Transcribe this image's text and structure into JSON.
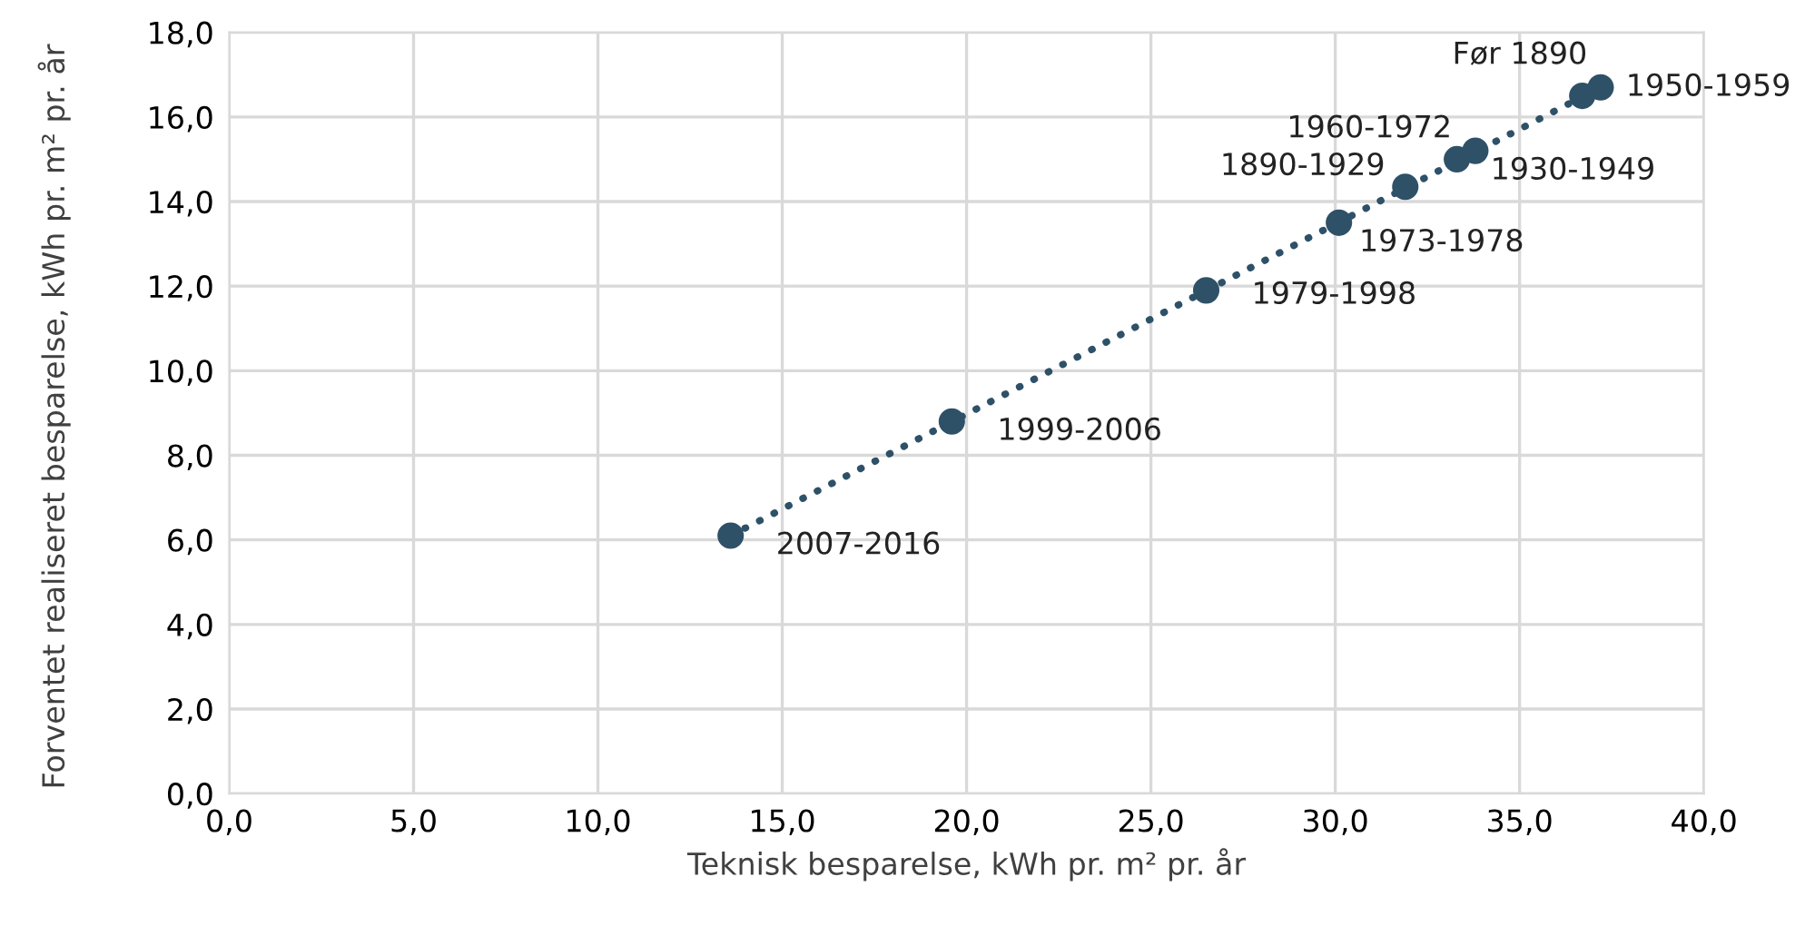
{
  "chart_data": {
    "type": "scatter",
    "xlabel": "Teknisk besparelse, kWh pr. m² pr. år",
    "ylabel": "Forventet realiseret besparelse, kWh pr. m² pr. år",
    "series": [
      {
        "color": "#2e5168",
        "marker": "circle",
        "x": [
          13.6,
          19.6,
          26.5,
          30.1,
          31.9,
          33.3,
          33.8,
          36.7,
          37.2
        ],
        "values": [
          6.1,
          8.8,
          11.9,
          13.5,
          14.35,
          15.0,
          15.2,
          16.5,
          16.7
        ]
      },
      {
        "type": "line",
        "color": "#2e5168",
        "line_style": "dotted",
        "x": [
          13.6,
          37.2
        ],
        "values": [
          6.1,
          16.7
        ]
      }
    ],
    "annotations": [
      {
        "text": "2007-2016",
        "x": 13.6,
        "y": 6.1
      },
      {
        "text": "1999-2006",
        "x": 19.6,
        "y": 8.8
      },
      {
        "text": "1979-1998",
        "x": 26.5,
        "y": 11.9
      },
      {
        "text": "1973-1978",
        "x": 30.1,
        "y": 13.5
      },
      {
        "text": "1890-1929",
        "x": 31.9,
        "y": 14.35
      },
      {
        "text": "1960-1972",
        "x": 33.3,
        "y": 15.0
      },
      {
        "text": "1930-1949",
        "x": 33.8,
        "y": 15.2
      },
      {
        "text": "Før 1890",
        "x": 36.7,
        "y": 16.5
      },
      {
        "text": "1950-1959",
        "x": 37.2,
        "y": 16.7
      }
    ],
    "xlim": [
      0,
      40
    ],
    "ylim": [
      0,
      18
    ],
    "xticks": [
      {
        "value": 0,
        "label": "0,0"
      },
      {
        "value": 5,
        "label": "5,0"
      },
      {
        "value": 10,
        "label": "10,0"
      },
      {
        "value": 15,
        "label": "15,0"
      },
      {
        "value": 20,
        "label": "20,0"
      },
      {
        "value": 25,
        "label": "25,0"
      },
      {
        "value": 30,
        "label": "30,0"
      },
      {
        "value": 35,
        "label": "35,0"
      },
      {
        "value": 40,
        "label": "40,0"
      }
    ],
    "yticks": [
      {
        "value": 0,
        "label": "0,0"
      },
      {
        "value": 2,
        "label": "2,0"
      },
      {
        "value": 4,
        "label": "4,0"
      },
      {
        "value": 6,
        "label": "6,0"
      },
      {
        "value": 8,
        "label": "8,0"
      },
      {
        "value": 10,
        "label": "10,0"
      },
      {
        "value": 12,
        "label": "12,0"
      },
      {
        "value": 14,
        "label": "14,0"
      },
      {
        "value": 16,
        "label": "16,0"
      },
      {
        "value": 18,
        "label": "18,0"
      }
    ],
    "grid": true
  }
}
